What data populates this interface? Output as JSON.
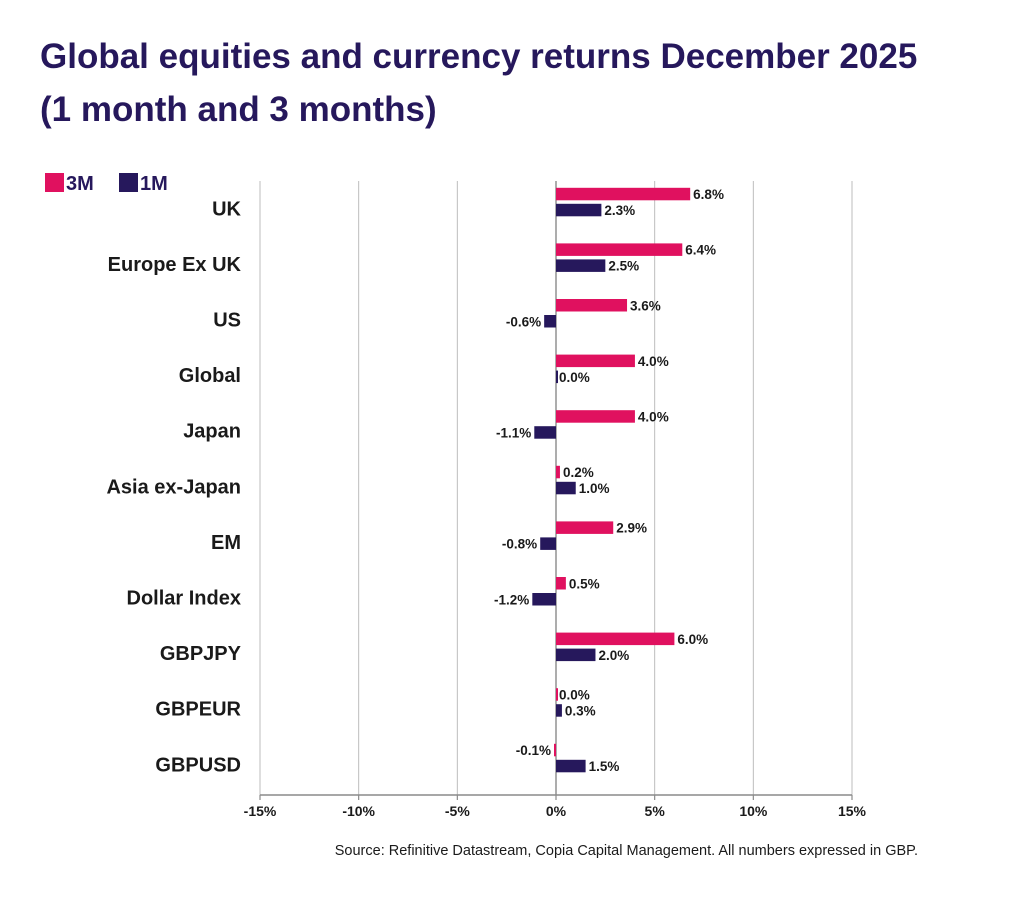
{
  "title": {
    "line1": "Global equities and currency returns December 2025",
    "line2": "(1 month and 3 months)"
  },
  "source": "Source: Refinitive Datastream, Copia Capital Management. All numbers expressed in GBP.",
  "chart_data": {
    "type": "bar",
    "orientation": "horizontal",
    "categories": [
      "UK",
      "Europe Ex UK",
      "US",
      "Global",
      "Japan",
      "Asia ex-Japan",
      "EM",
      "Dollar Index",
      "GBPJPY",
      "GBPEUR",
      "GBPUSD"
    ],
    "series": [
      {
        "name": "3M",
        "color": "#e0115f",
        "values": [
          6.8,
          6.4,
          3.6,
          4.0,
          4.0,
          0.2,
          2.9,
          0.5,
          6.0,
          0.0,
          -0.1
        ],
        "labels": [
          "6.8%",
          "6.4%",
          "3.6%",
          "4.0%",
          "4.0%",
          "0.2%",
          "2.9%",
          "0.5%",
          "6.0%",
          "0.0%",
          "-0.1%"
        ]
      },
      {
        "name": "1M",
        "color": "#26185c",
        "values": [
          2.3,
          2.5,
          -0.6,
          0.0,
          -1.1,
          1.0,
          -0.8,
          -1.2,
          2.0,
          0.3,
          1.5
        ],
        "labels": [
          "2.3%",
          "2.5%",
          "-0.6%",
          "0.0%",
          "-1.1%",
          "1.0%",
          "-0.8%",
          "-1.2%",
          "2.0%",
          "0.3%",
          "1.5%"
        ]
      }
    ],
    "xlim": [
      -15,
      15
    ],
    "xticks": [
      -15,
      -10,
      -5,
      0,
      5,
      10,
      15
    ],
    "xtick_labels": [
      "-15%",
      "-10%",
      "-5%",
      "0%",
      "5%",
      "10%",
      "15%"
    ],
    "legend": {
      "position": "top-left",
      "entries": [
        "3M",
        "1M"
      ]
    },
    "grid": true,
    "grid_color": "#bdbdbd",
    "axis_color": "#8a8a8a",
    "text_color": "#1a1a1a",
    "title_color": "#26185c"
  }
}
